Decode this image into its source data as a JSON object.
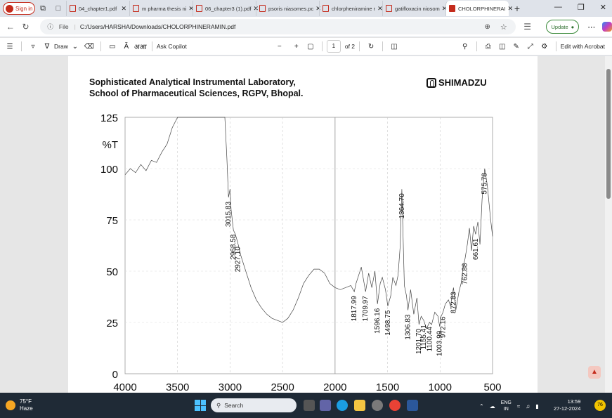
{
  "browser": {
    "signin_label": "Sign in",
    "tabs": [
      {
        "label": "04_chapter1.pdf",
        "active": false
      },
      {
        "label": "m pharma thesis ni",
        "active": false
      },
      {
        "label": "06_chapter3 (1).pdf",
        "active": false
      },
      {
        "label": "psoris niasomes.pc",
        "active": false
      },
      {
        "label": "chlorpheniramine r",
        "active": false
      },
      {
        "label": "gatifloxacin niosom",
        "active": false
      },
      {
        "label": "CHOLORPHINERAI",
        "active": true
      }
    ],
    "new_tab": "+",
    "address": {
      "scheme_label": "File",
      "url": "C:/Users/HARSHA/Downloads/CHOLORPHINERAMIN.pdf"
    },
    "update_label": "Update"
  },
  "pdf_toolbar": {
    "draw_label": "Draw",
    "aa_label": "Ă",
    "read_label": "अआ",
    "ask_copilot_label": "Ask Copilot",
    "zoom_out": "−",
    "zoom_in": "+",
    "page_current": "1",
    "page_total": "of 2",
    "edit_acrobat_label": "Edit with Acrobat"
  },
  "document": {
    "title_line1": "Sophisticated Analytical Instrumental Laboratory,",
    "title_line2": "School of Pharmaceutical Sciences, RGPV, Bhopal.",
    "logo_text": "SHIMADZU"
  },
  "chart_data": {
    "type": "line",
    "title": "",
    "xlabel": "",
    "ylabel": "%T",
    "xlim": [
      4000,
      500
    ],
    "ylim": [
      0,
      125
    ],
    "x_ticks": [
      4000,
      3500,
      3000,
      2500,
      2000,
      1500,
      1000,
      500
    ],
    "y_ticks": [
      0,
      25,
      50,
      75,
      100,
      125
    ],
    "series": [
      {
        "x": [
          4000,
          3950,
          3900,
          3850,
          3800,
          3750,
          3700,
          3650,
          3600,
          3550,
          3500,
          3450,
          3400,
          3350,
          3300,
          3250,
          3200,
          3150,
          3100,
          3050,
          3030,
          3015,
          3000,
          2990,
          2968,
          2950,
          2927,
          2900,
          2850,
          2800,
          2750,
          2700,
          2650,
          2600,
          2550,
          2500,
          2450,
          2400,
          2350,
          2300,
          2250,
          2200,
          2150,
          2100,
          2050,
          2000,
          1950,
          1900,
          1850,
          1817,
          1800,
          1750,
          1709,
          1680,
          1650,
          1620,
          1596,
          1570,
          1550,
          1520,
          1498,
          1470,
          1450,
          1420,
          1400,
          1380,
          1364,
          1340,
          1320,
          1306,
          1280,
          1250,
          1220,
          1201,
          1180,
          1155,
          1130,
          1100,
          1080,
          1050,
          1020,
          1003,
          990,
          972,
          950,
          920,
          900,
          872,
          850,
          820,
          800,
          780,
          762,
          740,
          720,
          700,
          680,
          661,
          640,
          620,
          600,
          575,
          550,
          520,
          500
        ],
        "y": [
          97,
          100,
          98,
          102,
          99,
          104,
          103,
          108,
          112,
          120,
          125,
          125,
          125,
          125,
          125,
          125,
          125,
          125,
          125,
          125,
          105,
          86,
          90,
          80,
          70,
          68,
          64,
          58,
          50,
          42,
          36,
          32,
          29,
          27,
          26,
          25,
          27,
          31,
          37,
          44,
          48,
          51,
          51,
          49,
          44,
          42,
          41,
          42,
          43,
          40,
          44,
          52,
          40,
          49,
          42,
          50,
          34,
          44,
          47,
          41,
          33,
          38,
          47,
          43,
          48,
          62,
          90,
          43,
          38,
          31,
          41,
          29,
          37,
          24,
          28,
          26,
          22,
          25,
          24,
          30,
          28,
          23,
          28,
          30,
          34,
          36,
          33,
          42,
          31,
          40,
          44,
          52,
          56,
          63,
          71,
          60,
          72,
          68,
          74,
          63,
          85,
          100,
          92,
          76,
          67
        ]
      }
    ],
    "peak_labels": [
      {
        "x": 3015.83,
        "text": "3015.83"
      },
      {
        "x": 2968.58,
        "text": "2968.58"
      },
      {
        "x": 2927.1,
        "text": "2927.10"
      },
      {
        "x": 1817.99,
        "text": "1817.99"
      },
      {
        "x": 1709.97,
        "text": "1709.97"
      },
      {
        "x": 1596.16,
        "text": "1596.16"
      },
      {
        "x": 1498.75,
        "text": "1498.75"
      },
      {
        "x": 1364.7,
        "text": "1364.70"
      },
      {
        "x": 1306.83,
        "text": "1306.83"
      },
      {
        "x": 1201.7,
        "text": "1201.70"
      },
      {
        "x": 1155.41,
        "text": "1155.41"
      },
      {
        "x": 1100.44,
        "text": "1100.44"
      },
      {
        "x": 1003.99,
        "text": "1003.99"
      },
      {
        "x": 972.16,
        "text": "972.16"
      },
      {
        "x": 872.83,
        "text": "872.83"
      },
      {
        "x": 762.88,
        "text": "762.88"
      },
      {
        "x": 661.61,
        "text": "661.61"
      },
      {
        "x": 575.78,
        "text": "575.78"
      }
    ],
    "grid": true
  },
  "taskbar": {
    "weather_temp": "75°F",
    "weather_desc": "Haze",
    "search_placeholder": "Search",
    "lang_top": "ENG",
    "lang_bottom": "IN",
    "time": "13:59",
    "date": "27-12-2024",
    "notif_count": "76"
  }
}
